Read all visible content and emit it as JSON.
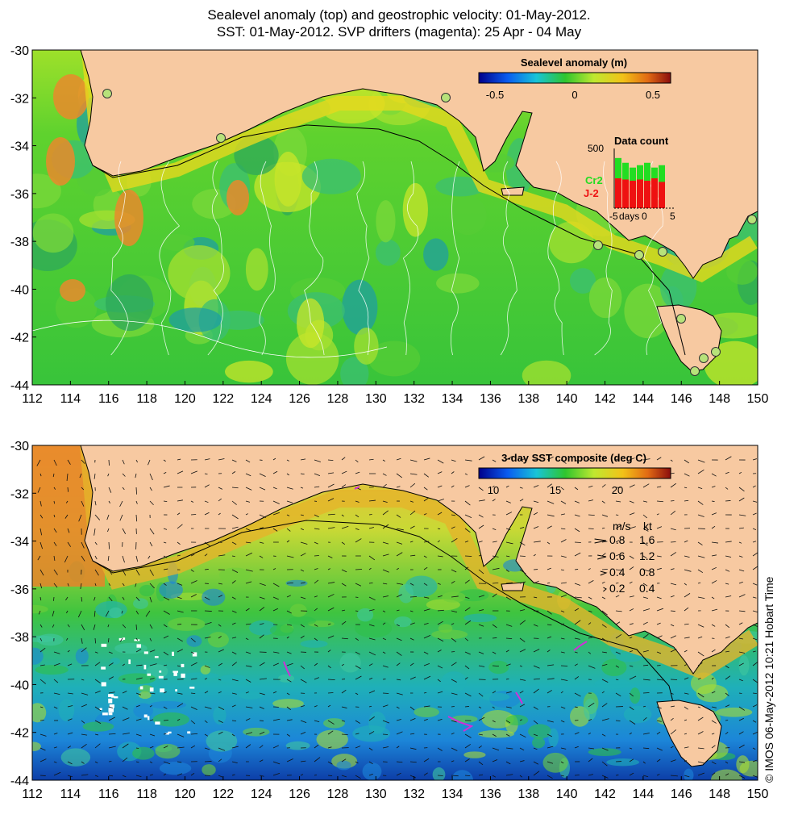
{
  "title": {
    "line1": "Sealevel anomaly (top) and geostrophic velocity: 01-May-2012.",
    "line2": "SST: 01-May-2012. SVP drifters (magenta): 25 Apr - 04 May"
  },
  "top_panel": {
    "colorbar_label": "Sealevel anomaly (m)",
    "colorbar_ticks": [
      "-0.5",
      "0",
      "0.5"
    ],
    "data_count": {
      "title": "Data count",
      "y_tick": "500",
      "x_ticks": [
        "-5",
        "0",
        "5"
      ],
      "x_unit": "days",
      "series": [
        {
          "name": "Cr2",
          "color": "#22dd22",
          "values": [
            420,
            380,
            340,
            360,
            380,
            340,
            360
          ]
        },
        {
          "name": "J-2",
          "color": "#ee1111",
          "values": [
            250,
            240,
            230,
            240,
            230,
            250,
            220
          ]
        }
      ]
    },
    "colors": {
      "land": "#f7c9a1",
      "high": "#e07a20",
      "mid": "#3dc43a",
      "low": "#1f9fa0"
    }
  },
  "bottom_panel": {
    "colorbar_label": "3-day SST composite (deg C)",
    "colorbar_ticks": [
      "10",
      "15",
      "20"
    ],
    "speed_legend": {
      "header_ms": "m/s",
      "header_kt": "kt",
      "rows": [
        {
          "ms": "0.8",
          "kt": "1.6"
        },
        {
          "ms": "0.6",
          "kt": "1.2"
        },
        {
          "ms": "0.4",
          "kt": "0.8"
        },
        {
          "ms": "0.2",
          "kt": "0.4"
        }
      ]
    },
    "colors": {
      "land": "#f7c9a1",
      "warm": "#e8952a",
      "mid": "#2fbf4a",
      "cold": "#1b7fd6"
    }
  },
  "axes": {
    "x_ticks": [
      "112",
      "114",
      "116",
      "118",
      "120",
      "122",
      "124",
      "126",
      "128",
      "130",
      "132",
      "134",
      "136",
      "138",
      "140",
      "142",
      "144",
      "146",
      "148",
      "150"
    ],
    "y_ticks": [
      "-30",
      "-32",
      "-34",
      "-36",
      "-38",
      "-40",
      "-42",
      "-44"
    ]
  },
  "credit": "© IMOS 06-May-2012 10:21 Hobart Time"
}
